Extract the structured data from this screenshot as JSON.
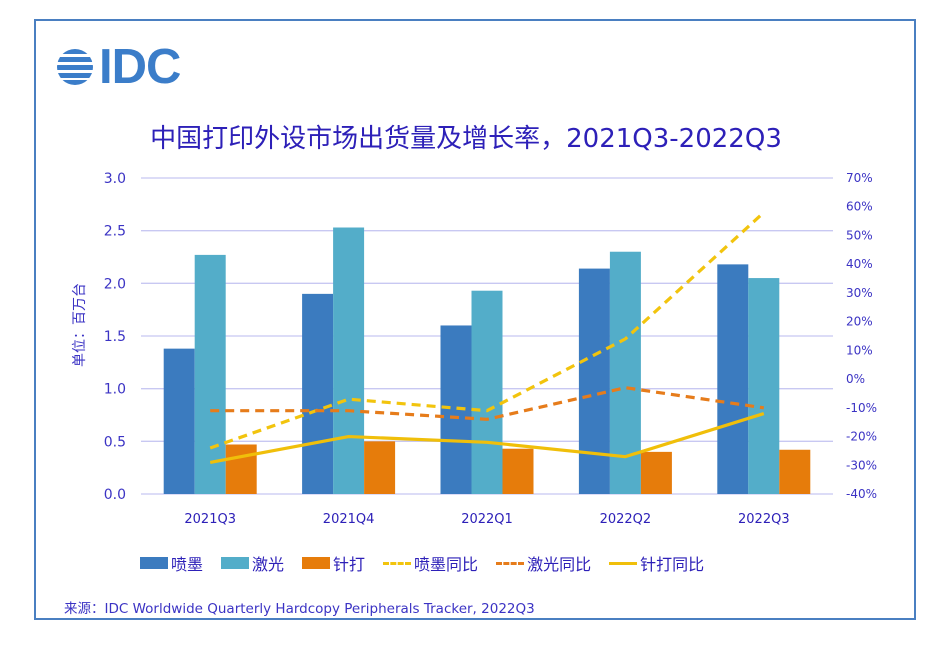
{
  "logo": {
    "text": "IDC",
    "icon": "idc-globe-icon",
    "color": "#3b7dc9"
  },
  "ylabel_left": "单位：百万台",
  "source": "来源：IDC Worldwide Quarterly Hardcopy Peripherals Tracker, 2022Q3",
  "colors": {
    "inkjet": "#3b7bbf",
    "laser": "#53adc9",
    "dotmatrix": "#e67c0b",
    "inkjet_yoy": "#f2c40d",
    "laser_yoy": "#e67c1b",
    "dotmatrix_yoy": "#f0bf0a",
    "grid": "#c8c8f2",
    "text": "#2d20b8"
  },
  "chart_data": {
    "type": "bar",
    "title": "中国打印外设市场出货量及增长率，2021Q3-2022Q3",
    "xlabel": "",
    "ylabel": "单位：百万台",
    "y2label": "",
    "categories": [
      "2021Q3",
      "2021Q4",
      "2022Q1",
      "2022Q2",
      "2022Q3"
    ],
    "ylim": [
      0,
      3.0
    ],
    "yticks": [
      "0.0",
      "0.5",
      "1.0",
      "1.5",
      "2.0",
      "2.5",
      "3.0"
    ],
    "y2lim": [
      -40,
      70
    ],
    "y2ticks": [
      "-40%",
      "-30%",
      "-20%",
      "-10%",
      "0%",
      "10%",
      "20%",
      "30%",
      "40%",
      "50%",
      "60%",
      "70%"
    ],
    "grid": true,
    "legend_position": "bottom",
    "series": [
      {
        "name": "喷墨",
        "kind": "bar",
        "axis": "left",
        "color_key": "inkjet",
        "values": [
          1.38,
          1.9,
          1.6,
          2.14,
          2.18
        ]
      },
      {
        "name": "激光",
        "kind": "bar",
        "axis": "left",
        "color_key": "laser",
        "values": [
          2.27,
          2.53,
          1.93,
          2.3,
          2.05
        ]
      },
      {
        "name": "针打",
        "kind": "bar",
        "axis": "left",
        "color_key": "dotmatrix",
        "values": [
          0.47,
          0.5,
          0.43,
          0.4,
          0.42
        ]
      },
      {
        "name": "喷墨同比",
        "kind": "line",
        "style": "dashed",
        "axis": "right",
        "color_key": "inkjet_yoy",
        "values": [
          -24,
          -7,
          -11,
          14,
          58
        ]
      },
      {
        "name": "激光同比",
        "kind": "line",
        "style": "dashed",
        "axis": "right",
        "color_key": "laser_yoy",
        "values": [
          -11,
          -11,
          -14,
          -3,
          -10
        ]
      },
      {
        "name": "针打同比",
        "kind": "line",
        "style": "solid",
        "axis": "right",
        "color_key": "dotmatrix_yoy",
        "values": [
          -29,
          -20,
          -22,
          -27,
          -12
        ]
      }
    ]
  }
}
